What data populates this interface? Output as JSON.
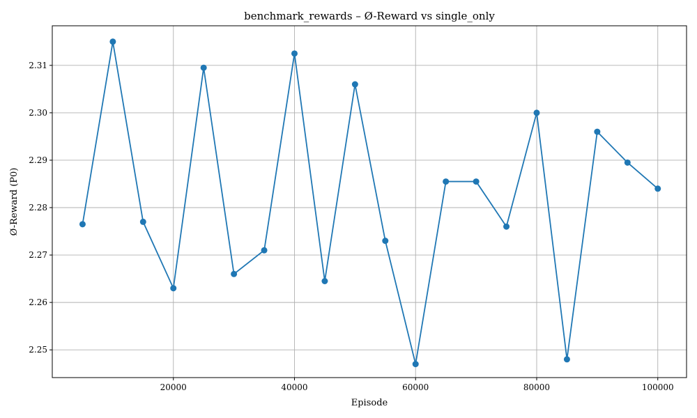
{
  "chart_data": {
    "type": "line",
    "title": "benchmark_rewards – Ø-Reward vs single_only",
    "xlabel": "Episode",
    "ylabel": "Ø-Reward (P0)",
    "x": [
      5000,
      10000,
      15000,
      20000,
      25000,
      30000,
      35000,
      40000,
      45000,
      50000,
      55000,
      60000,
      65000,
      70000,
      75000,
      80000,
      85000,
      90000,
      95000,
      100000
    ],
    "series": [
      {
        "values": [
          2.2765,
          2.315,
          2.277,
          2.263,
          2.3095,
          2.266,
          2.271,
          2.3125,
          2.2645,
          2.306,
          2.273,
          2.247,
          2.2855,
          2.2855,
          2.276,
          2.3,
          2.248,
          2.296,
          2.2895,
          2.284
        ],
        "color": "#1f77b4",
        "marker": "circle"
      }
    ],
    "xlim": [
      0,
      104750
    ],
    "ylim": [
      2.24415,
      2.31835
    ],
    "xticks": [
      20000,
      40000,
      60000,
      80000,
      100000
    ],
    "xtick_labels": [
      "20000",
      "40000",
      "60000",
      "80000",
      "100000"
    ],
    "yticks": [
      2.25,
      2.26,
      2.27,
      2.28,
      2.29,
      2.3,
      2.31
    ],
    "ytick_labels": [
      "2.25",
      "2.26",
      "2.27",
      "2.28",
      "2.29",
      "2.30",
      "2.31"
    ],
    "grid": true
  }
}
